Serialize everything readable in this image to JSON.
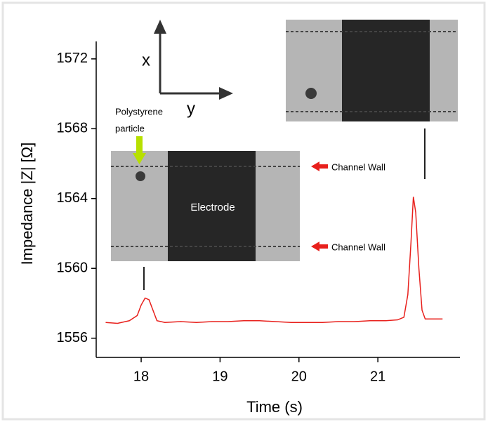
{
  "chart_data": {
    "type": "line",
    "x_label": "Time (s)",
    "y_label": "Impedance  |Z| [Ω]",
    "x": [
      17.55,
      17.7,
      17.85,
      17.95,
      18.0,
      18.05,
      18.1,
      18.15,
      18.2,
      18.3,
      18.5,
      18.7,
      18.9,
      19.1,
      19.3,
      19.5,
      19.7,
      19.9,
      20.1,
      20.3,
      20.5,
      20.7,
      20.9,
      21.1,
      21.25,
      21.33,
      21.38,
      21.42,
      21.45,
      21.48,
      21.52,
      21.56,
      21.6,
      21.7,
      21.82
    ],
    "series": [
      {
        "color": "#e8201c",
        "values": [
          1556.9,
          1556.85,
          1557.0,
          1557.3,
          1557.9,
          1558.3,
          1558.2,
          1557.6,
          1557.0,
          1556.9,
          1556.95,
          1556.9,
          1556.95,
          1556.95,
          1557.0,
          1557.0,
          1556.95,
          1556.9,
          1556.9,
          1556.9,
          1556.95,
          1556.95,
          1557.0,
          1557.0,
          1557.05,
          1557.2,
          1558.5,
          1561.5,
          1564.1,
          1563.2,
          1560.0,
          1557.6,
          1557.1,
          1557.1,
          1557.1
        ]
      }
    ],
    "xlim": [
      17.43,
      22.04
    ],
    "xticks": [
      18,
      19,
      20,
      21
    ],
    "ylim": [
      1554.9,
      1573
    ],
    "yticks": [
      1556,
      1560,
      1564,
      1568,
      1572
    ],
    "annotations": {
      "axis_x": "x",
      "axis_y": "y",
      "particle": [
        "Polystyrene",
        "particle"
      ],
      "electrode": "Electrode",
      "walls": [
        "Channel Wall",
        "Channel Wall"
      ]
    }
  }
}
